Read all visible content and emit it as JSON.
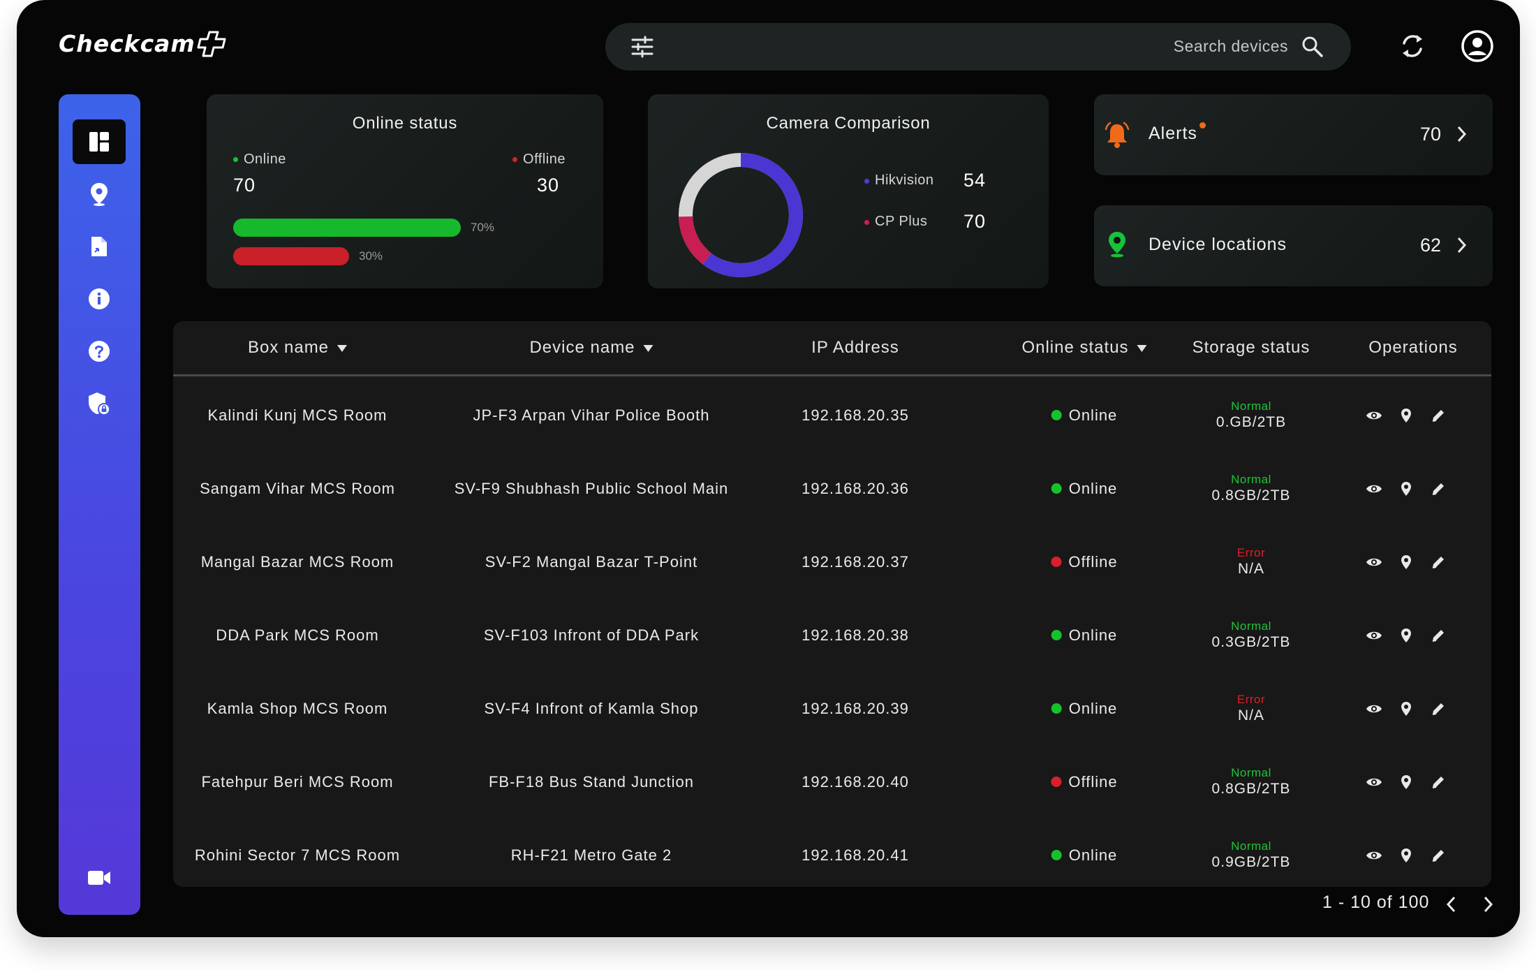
{
  "app": {
    "logo_text": "Checkcam"
  },
  "search": {
    "placeholder": "Search devices"
  },
  "online_status": {
    "title": "Online status",
    "online_label": "Online",
    "offline_label": "Offline",
    "online_count": "70",
    "offline_count": "30",
    "online_percent_label": "70%",
    "offline_percent_label": "30%",
    "online_fraction": 0.7,
    "offline_fraction": 0.3,
    "online_color": "#16b82c",
    "offline_color": "#c9202a"
  },
  "camera_comparison": {
    "title": "Camera Comparison",
    "brands": [
      {
        "name": "Hikvision",
        "value": "54",
        "color": "#4f3bd6"
      },
      {
        "name": "CP Plus",
        "value": "70",
        "color": "#d21f4f"
      }
    ]
  },
  "alerts": {
    "label": "Alerts",
    "count": "70",
    "icon_color": "#f06a1a"
  },
  "device_locations": {
    "label": "Device locations",
    "count": "62",
    "icon_color": "#18c23a"
  },
  "table": {
    "headers": [
      "Box name",
      "Device name",
      "IP Address",
      "Online status",
      "Storage status",
      "Operations"
    ],
    "rows": [
      {
        "box": "Kalindi Kunj MCS Room",
        "device": "JP-F3 Arpan Vihar Police Booth",
        "ip": "192.168.20.35",
        "status": "Online",
        "storage_state": "Normal",
        "storage_amount": "0.GB/2TB"
      },
      {
        "box": "Sangam Vihar MCS Room",
        "device": "SV-F9 Shubhash Public School Main",
        "ip": "192.168.20.36",
        "status": "Online",
        "storage_state": "Normal",
        "storage_amount": "0.8GB/2TB"
      },
      {
        "box": "Mangal Bazar MCS Room",
        "device": "SV-F2 Mangal Bazar T-Point",
        "ip": "192.168.20.37",
        "status": "Offline",
        "storage_state": "Error",
        "storage_amount": "N/A"
      },
      {
        "box": "DDA Park MCS Room",
        "device": "SV-F103 Infront of DDA Park",
        "ip": "192.168.20.38",
        "status": "Online",
        "storage_state": "Normal",
        "storage_amount": "0.3GB/2TB"
      },
      {
        "box": "Kamla Shop MCS Room",
        "device": "SV-F4 Infront of Kamla Shop",
        "ip": "192.168.20.39",
        "status": "Online",
        "storage_state": "Error",
        "storage_amount": "N/A"
      },
      {
        "box": "Fatehpur Beri MCS Room",
        "device": "FB-F18 Bus Stand Junction",
        "ip": "192.168.20.40",
        "status": "Offline",
        "storage_state": "Normal",
        "storage_amount": "0.8GB/2TB"
      },
      {
        "box": "Rohini Sector 7 MCS Room",
        "device": "RH-F21 Metro Gate 2",
        "ip": "192.168.20.41",
        "status": "Online",
        "storage_state": "Normal",
        "storage_amount": "0.9GB/2TB"
      }
    ]
  },
  "pagination": {
    "text": "1 - 10 of 100"
  },
  "colors": {
    "online": "#16c22c",
    "offline": "#d9202a",
    "normal": "#1fc43a",
    "error": "#d9202a"
  },
  "icons": {
    "sidebar": [
      "dashboard-icon",
      "location-pin-icon",
      "document-icon",
      "info-icon",
      "help-icon",
      "security-shield-icon",
      "video-camera-icon"
    ],
    "top": [
      "filter-icon",
      "search-icon",
      "refresh-icon",
      "account-icon"
    ],
    "operations": [
      "view-icon",
      "location-icon",
      "edit-icon"
    ]
  }
}
